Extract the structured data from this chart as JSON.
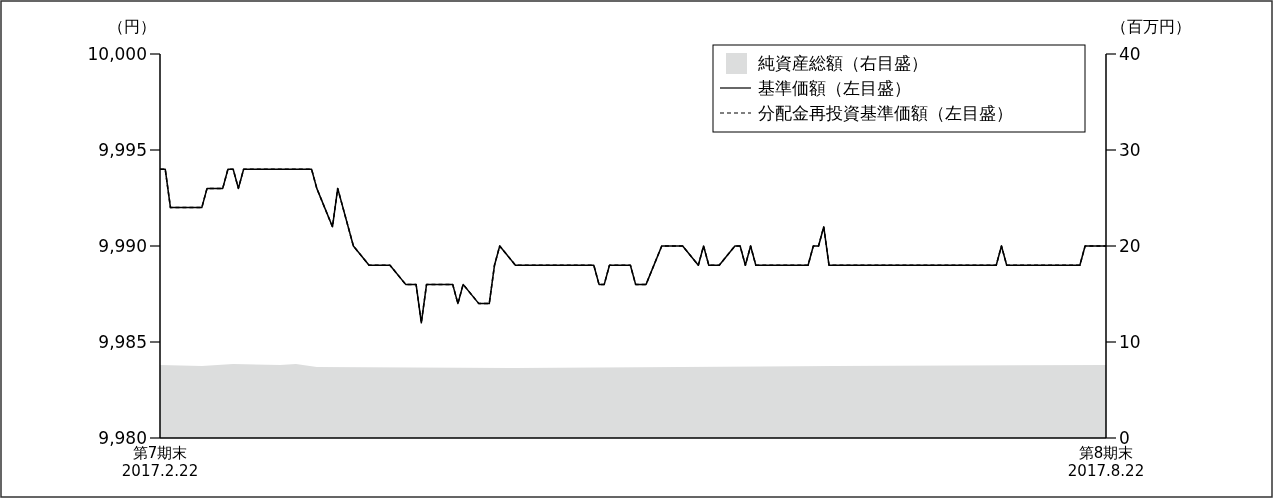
{
  "chart_data": {
    "type": "line",
    "ylabel": "（円）",
    "y2label": "（百万円）",
    "xlim": [
      "2017-02-22",
      "2017-08-22"
    ],
    "xticks": [
      {
        "value": "2017-02-22",
        "label": "第7期末\n2017.2.22"
      },
      {
        "value": "2017-08-22",
        "label": "第8期末\n2017.8.22"
      }
    ],
    "ylim": [
      9980,
      10000
    ],
    "yticks": [
      {
        "value": 9980,
        "label": "9,980"
      },
      {
        "value": 9985,
        "label": "9,985"
      },
      {
        "value": 9990,
        "label": "9,990"
      },
      {
        "value": 9995,
        "label": "9,995"
      },
      {
        "value": 10000,
        "label": "10,000"
      }
    ],
    "y2lim": [
      0,
      40
    ],
    "y2ticks": [
      0,
      10,
      20,
      30,
      40
    ],
    "legend": "top right",
    "series": [
      {
        "name": "純資産総額（右目盛）",
        "type": "area",
        "axis": "y2",
        "color": "#dcdddd",
        "x": [
          "2017-02-22",
          "2017-03-02",
          "2017-03-08",
          "2017-03-17",
          "2017-03-20",
          "2017-03-24",
          "2017-05-01",
          "2017-07-01",
          "2017-08-22"
        ],
        "values": [
          7.6,
          7.5,
          7.7,
          7.6,
          7.7,
          7.4,
          7.3,
          7.5,
          7.6
        ]
      },
      {
        "name": "基準価額（左目盛）",
        "color": "#000000",
        "line_style": "solid",
        "x": [
          "2017-02-22",
          "2017-02-23",
          "2017-02-24",
          "2017-03-02",
          "2017-03-03",
          "2017-03-06",
          "2017-03-07",
          "2017-03-08",
          "2017-03-09",
          "2017-03-10",
          "2017-03-23",
          "2017-03-24",
          "2017-03-27",
          "2017-03-28",
          "2017-03-31",
          "2017-04-03",
          "2017-04-07",
          "2017-04-10",
          "2017-04-12",
          "2017-04-13",
          "2017-04-14",
          "2017-04-19",
          "2017-04-20",
          "2017-04-21",
          "2017-04-24",
          "2017-04-26",
          "2017-04-27",
          "2017-04-28",
          "2017-05-01",
          "2017-05-16",
          "2017-05-17",
          "2017-05-18",
          "2017-05-19",
          "2017-05-23",
          "2017-05-24",
          "2017-05-26",
          "2017-05-29",
          "2017-06-02",
          "2017-06-05",
          "2017-06-06",
          "2017-06-07",
          "2017-06-09",
          "2017-06-12",
          "2017-06-13",
          "2017-06-14",
          "2017-06-15",
          "2017-06-16",
          "2017-06-26",
          "2017-06-27",
          "2017-06-28",
          "2017-06-29",
          "2017-06-30",
          "2017-08-01",
          "2017-08-02",
          "2017-08-03",
          "2017-08-17",
          "2017-08-18",
          "2017-08-22"
        ],
        "values": [
          9994,
          9994,
          9992,
          9992,
          9993,
          9993,
          9994,
          9994,
          9993,
          9994,
          9994,
          9993,
          9991,
          9993,
          9990,
          9989,
          9989,
          9988,
          9988,
          9986,
          9988,
          9988,
          9987,
          9988,
          9987,
          9987,
          9989,
          9990,
          9989,
          9989,
          9988,
          9988,
          9989,
          9989,
          9988,
          9988,
          9990,
          9990,
          9989,
          9990,
          9989,
          9989,
          9990,
          9990,
          9989,
          9990,
          9989,
          9989,
          9990,
          9990,
          9991,
          9989,
          9989,
          9990,
          9989,
          9989,
          9990,
          9990
        ]
      },
      {
        "name": "分配金再投資基準価額（左目盛）",
        "color": "#000000",
        "line_style": "dashed",
        "x": [
          "2017-02-22",
          "2017-02-23",
          "2017-02-24",
          "2017-03-02",
          "2017-03-03",
          "2017-03-06",
          "2017-03-07",
          "2017-03-08",
          "2017-03-09",
          "2017-03-10",
          "2017-03-23",
          "2017-03-24",
          "2017-03-27",
          "2017-03-28",
          "2017-03-31",
          "2017-04-03",
          "2017-04-07",
          "2017-04-10",
          "2017-04-12",
          "2017-04-13",
          "2017-04-14",
          "2017-04-19",
          "2017-04-20",
          "2017-04-21",
          "2017-04-24",
          "2017-04-26",
          "2017-04-27",
          "2017-04-28",
          "2017-05-01",
          "2017-05-16",
          "2017-05-17",
          "2017-05-18",
          "2017-05-19",
          "2017-05-23",
          "2017-05-24",
          "2017-05-26",
          "2017-05-29",
          "2017-06-02",
          "2017-06-05",
          "2017-06-06",
          "2017-06-07",
          "2017-06-09",
          "2017-06-12",
          "2017-06-13",
          "2017-06-14",
          "2017-06-15",
          "2017-06-16",
          "2017-06-26",
          "2017-06-27",
          "2017-06-28",
          "2017-06-29",
          "2017-06-30",
          "2017-08-01",
          "2017-08-02",
          "2017-08-03",
          "2017-08-17",
          "2017-08-18",
          "2017-08-22"
        ],
        "values": [
          9994,
          9994,
          9992,
          9992,
          9993,
          9993,
          9994,
          9994,
          9993,
          9994,
          9994,
          9993,
          9991,
          9993,
          9990,
          9989,
          9989,
          9988,
          9988,
          9986,
          9988,
          9988,
          9987,
          9988,
          9987,
          9987,
          9989,
          9990,
          9989,
          9989,
          9988,
          9988,
          9989,
          9989,
          9988,
          9988,
          9990,
          9990,
          9989,
          9990,
          9989,
          9989,
          9990,
          9990,
          9989,
          9990,
          9989,
          9989,
          9990,
          9990,
          9991,
          9989,
          9989,
          9990,
          9989,
          9989,
          9990,
          9990
        ]
      }
    ]
  }
}
